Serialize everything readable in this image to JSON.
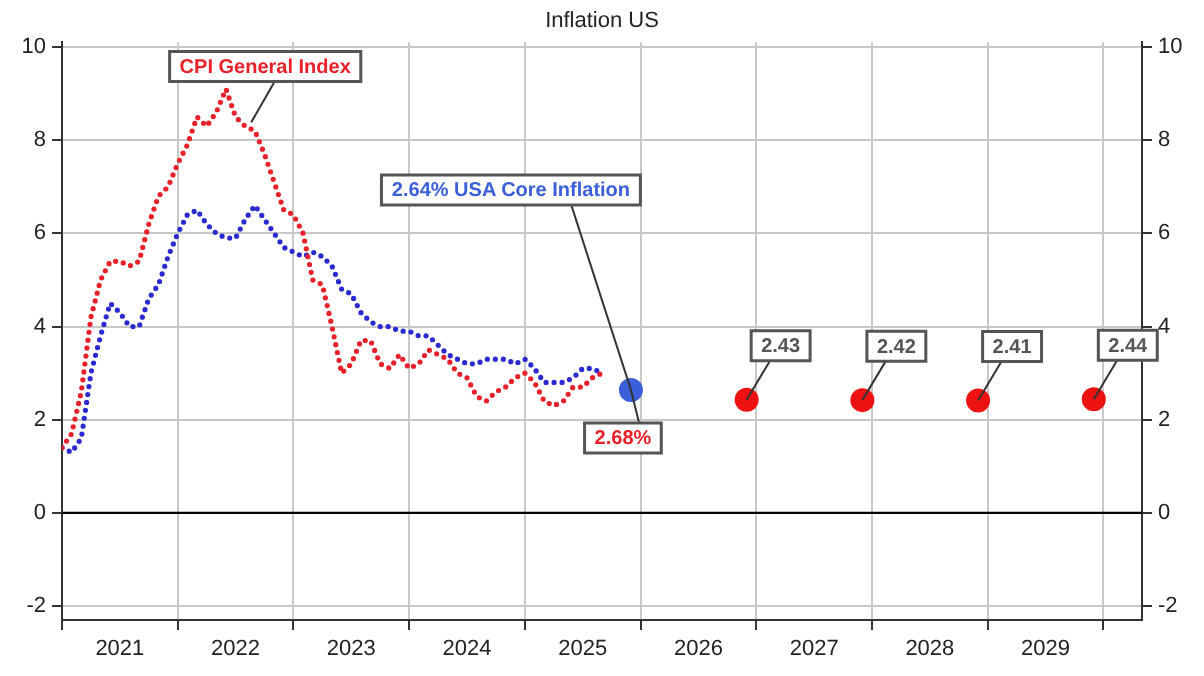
{
  "chart_data": {
    "type": "line",
    "title": "Inflation US",
    "x": [
      "2021-01",
      "2021-02",
      "2021-03",
      "2021-04",
      "2021-05",
      "2021-06",
      "2021-07",
      "2021-08",
      "2021-09",
      "2021-10",
      "2021-11",
      "2021-12",
      "2022-01",
      "2022-02",
      "2022-03",
      "2022-04",
      "2022-05",
      "2022-06",
      "2022-07",
      "2022-08",
      "2022-09",
      "2022-10",
      "2022-11",
      "2022-12",
      "2023-01",
      "2023-02",
      "2023-03",
      "2023-04",
      "2023-05",
      "2023-06",
      "2023-07",
      "2023-08",
      "2023-09",
      "2023-10",
      "2023-11",
      "2023-12",
      "2024-01",
      "2024-02",
      "2024-03",
      "2024-04",
      "2024-05",
      "2024-06",
      "2024-07",
      "2024-08",
      "2024-09",
      "2024-10",
      "2024-11",
      "2024-12",
      "2025-01",
      "2025-02",
      "2025-03",
      "2025-04",
      "2025-05",
      "2025-06",
      "2025-07",
      "2025-08",
      "2025-09"
    ],
    "series": [
      {
        "name": "CPI General Index",
        "color": "#e8202a",
        "line_style": "dotted",
        "marker": "none",
        "values": [
          1.4,
          1.7,
          2.6,
          4.2,
          5.0,
          5.4,
          5.4,
          5.3,
          5.4,
          6.2,
          6.8,
          7.0,
          7.5,
          7.9,
          8.5,
          8.3,
          8.6,
          9.1,
          8.5,
          8.3,
          8.2,
          7.7,
          7.1,
          6.5,
          6.4,
          6.0,
          5.0,
          4.9,
          4.0,
          3.0,
          3.2,
          3.7,
          3.7,
          3.2,
          3.1,
          3.4,
          3.1,
          3.2,
          3.5,
          3.4,
          3.3,
          3.0,
          2.9,
          2.5,
          2.4,
          2.6,
          2.7,
          2.9,
          3.0,
          2.8,
          2.4,
          2.3,
          2.4,
          2.7,
          2.7,
          2.9,
          3.0
        ]
      },
      {
        "color": "#2a2ad0",
        "line_style": "dotted",
        "marker": "none",
        "values": [
          1.4,
          1.3,
          1.6,
          3.0,
          3.8,
          4.5,
          4.3,
          4.0,
          4.0,
          4.6,
          4.9,
          5.5,
          6.0,
          6.4,
          6.5,
          6.2,
          6.0,
          5.9,
          5.9,
          6.3,
          6.6,
          6.3,
          6.0,
          5.7,
          5.6,
          5.5,
          5.6,
          5.5,
          5.3,
          4.8,
          4.7,
          4.3,
          4.1,
          4.0,
          4.0,
          3.9,
          3.9,
          3.8,
          3.8,
          3.6,
          3.4,
          3.3,
          3.2,
          3.2,
          3.3,
          3.3,
          3.3,
          3.2,
          3.3,
          3.1,
          2.8,
          2.8,
          2.8,
          2.9,
          3.1,
          3.1,
          3.0
        ]
      },
      {
        "type": "scatter",
        "color": "#3a5fd8",
        "marker": "circle",
        "x": [
          "2025-12"
        ],
        "values": [
          2.64
        ]
      },
      {
        "type": "scatter",
        "color": "#ee1111",
        "marker": "circle",
        "x": [
          "2026-12",
          "2027-12",
          "2028-12",
          "2029-12"
        ],
        "values": [
          2.43,
          2.42,
          2.41,
          2.44
        ],
        "value_labels": [
          "2.43",
          "2.42",
          "2.41",
          "2.44"
        ]
      }
    ],
    "annotations": [
      {
        "text": "2.64% USA Core Inflation",
        "x": "2025-12",
        "y": 2.64
      },
      "2.68%"
    ],
    "xlim": [
      "2021-01",
      "2030-05"
    ],
    "xticks": [
      {
        "value": "2021",
        "label": null
      },
      {
        "value": "2021-07",
        "label": "2021"
      },
      {
        "value": "2022",
        "label": null
      },
      {
        "value": "2022-07",
        "label": "2022"
      },
      {
        "value": "2023",
        "label": null
      },
      {
        "value": "2023-07",
        "label": "2023"
      },
      {
        "value": "2024",
        "label": null
      },
      {
        "value": "2024-07",
        "label": "2024"
      },
      {
        "value": "2025",
        "label": null
      },
      {
        "value": "2025-07",
        "label": "2025"
      },
      {
        "value": "2026",
        "label": null
      },
      {
        "value": "2026-07",
        "label": "2026"
      },
      {
        "value": "2027",
        "label": null
      },
      {
        "value": "2027-07",
        "label": "2027"
      },
      {
        "value": "2028",
        "label": null
      },
      {
        "value": "2028-07",
        "label": "2028"
      },
      {
        "value": "2029",
        "label": null
      },
      {
        "value": "2029-07",
        "label": "2029"
      },
      {
        "value": "2030",
        "label": null
      }
    ],
    "ylim": [
      -2.3,
      10.1
    ],
    "yticks": [
      -2,
      0,
      2,
      4,
      6,
      8,
      10
    ],
    "y2lim": [
      -2.3,
      10.1
    ],
    "y2ticks": [
      -2,
      0,
      2,
      4,
      6,
      8,
      10
    ],
    "ref_lines": [
      {
        "axis": "y",
        "value": 0,
        "color": "#000000",
        "line_style": "solid"
      }
    ],
    "grid": true,
    "legend": false
  }
}
